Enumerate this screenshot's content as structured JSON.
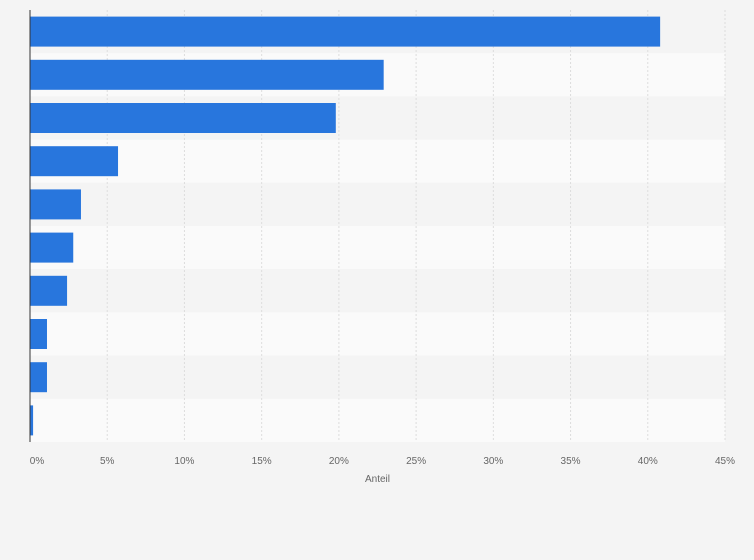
{
  "chart_data": {
    "type": "bar",
    "orientation": "horizontal",
    "categories": [
      "",
      "",
      "",
      "",
      "",
      "",
      "",
      "",
      "",
      ""
    ],
    "values": [
      40.8,
      22.9,
      19.8,
      5.7,
      3.3,
      2.8,
      2.4,
      1.1,
      1.1,
      0.2
    ],
    "xlabel": "Anteil",
    "xlim": [
      0,
      45
    ],
    "x_ticks": [
      0,
      5,
      10,
      15,
      20,
      25,
      30,
      35,
      40,
      45
    ],
    "x_tick_labels": [
      "0%",
      "5%",
      "10%",
      "15%",
      "20%",
      "25%",
      "30%",
      "35%",
      "40%",
      "45%"
    ],
    "grid": true,
    "bar_color": "#2876dd",
    "stripe_colors": [
      "#f4f4f4",
      "#fafafa"
    ]
  }
}
